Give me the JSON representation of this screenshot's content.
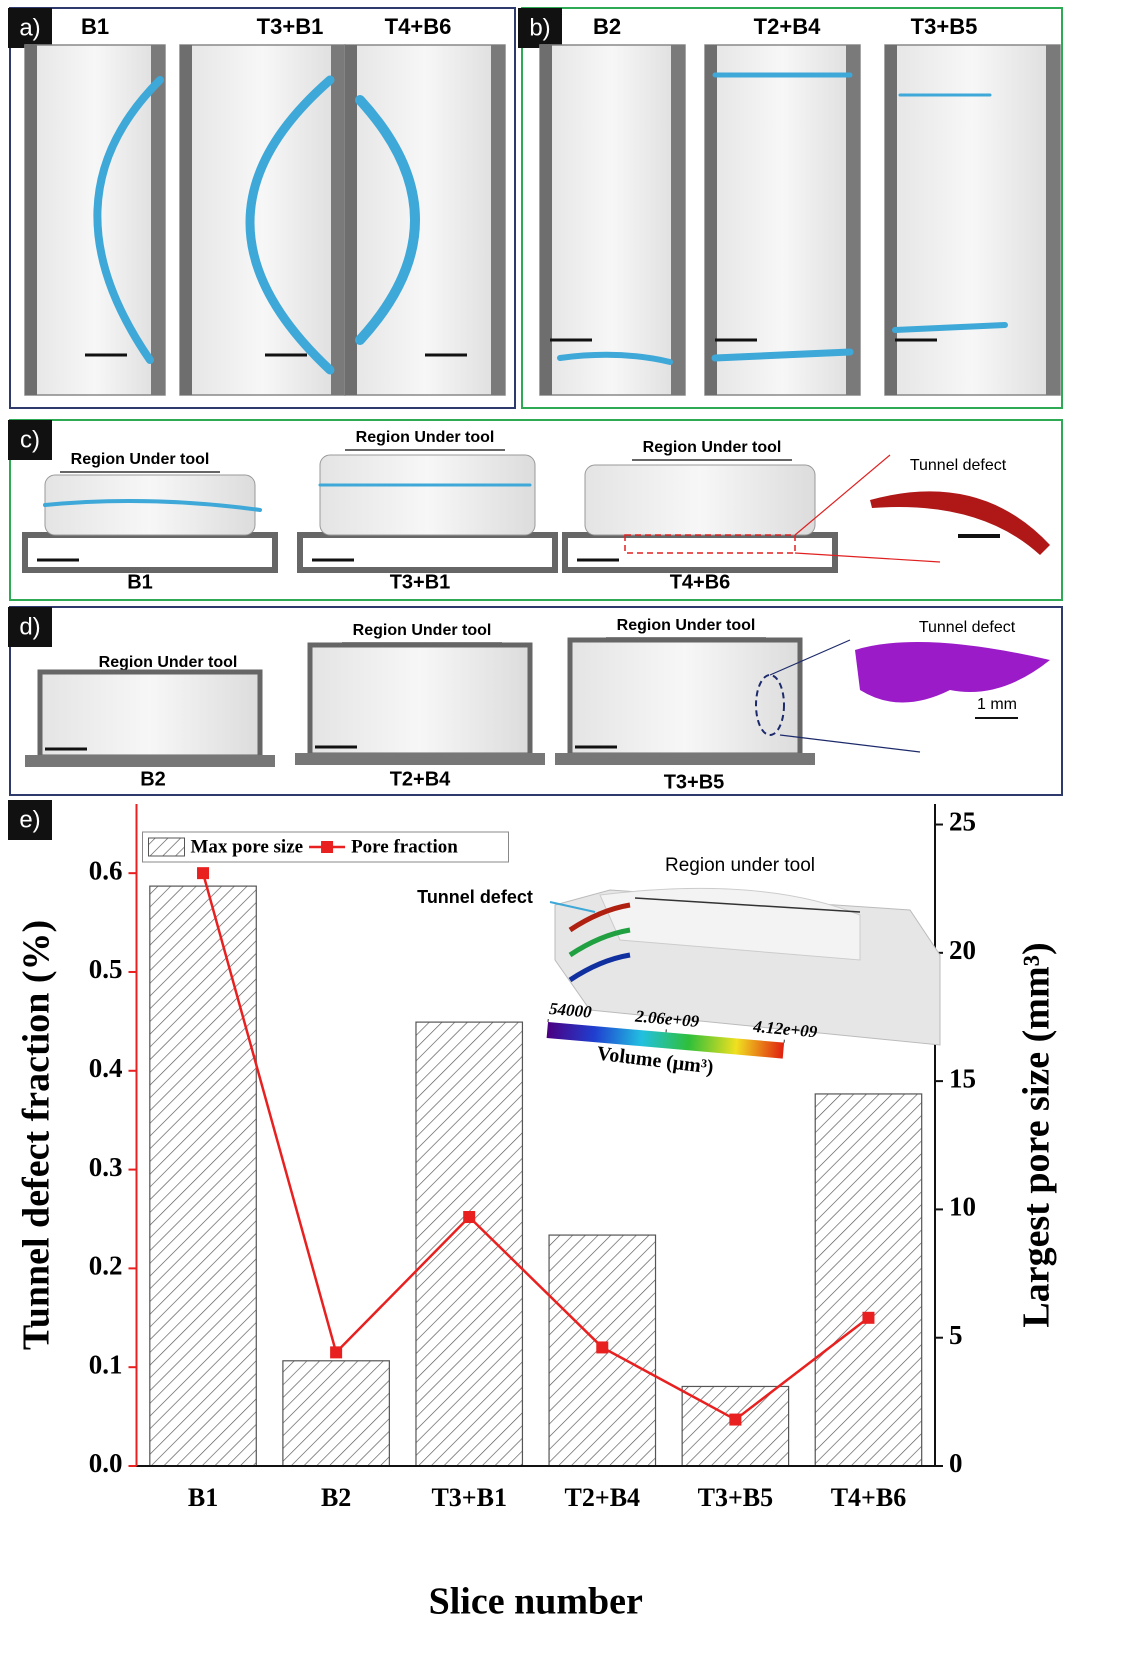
{
  "panels": [
    {
      "label": "a)",
      "views": [
        "B1",
        "T3+B1",
        "T4+B6"
      ]
    },
    {
      "label": "b)",
      "views": [
        "B2",
        "T2+B4",
        "T3+B5"
      ]
    },
    {
      "label": "c)",
      "views": [
        "B1",
        "T3+B1",
        "T4+B6"
      ],
      "region": [
        "Region Under tool",
        "Region Under tool",
        "Region Under tool"
      ],
      "defect": "Tunnel defect"
    },
    {
      "label": "d)",
      "views": [
        "B2",
        "T2+B4",
        "T3+B5"
      ],
      "region": [
        "Region Under tool",
        "Region Under tool",
        "Region Under tool"
      ],
      "defect": "Tunnel defect",
      "scale": "1 mm"
    }
  ],
  "chart_data": {
    "type": "combo",
    "panel_label": "e)",
    "categories": [
      "B1",
      "B2",
      "T3+B1",
      "T2+B4",
      "T3+B5",
      "T4+B6"
    ],
    "xlabel": "Slice number",
    "ylabel": "Tunnel defect fraction (%)",
    "y2label": "Largest pore size (mm³)",
    "series": [
      {
        "name": "Max pore size",
        "type": "bar",
        "axis": "y2",
        "color": "#555555",
        "values": [
          22.6,
          4.1,
          17.3,
          9.0,
          3.1,
          14.5
        ]
      },
      {
        "name": "Pore fraction",
        "type": "line",
        "color": "#e8201f",
        "values": [
          0.6,
          0.115,
          0.252,
          0.12,
          0.047,
          0.15
        ]
      }
    ],
    "ylim": [
      0,
      0.67
    ],
    "yticks": [
      {
        "value": 0,
        "label": "0.0"
      },
      0.1,
      0.2,
      0.3,
      0.4,
      0.5,
      0.6
    ],
    "y2lim": [
      0,
      25.8
    ],
    "y2ticks": [
      0,
      5,
      10,
      15,
      20,
      25
    ],
    "left_axis_color": "#e8201f",
    "legend": "upper left",
    "inset": {
      "region": "Region under tool",
      "defect": "Tunnel defect",
      "colorbar": {
        "label": "Volume (μm³)",
        "lim": [
          54000,
          4120000000
        ],
        "ticks": [
          54000,
          {
            "value": 2060000000,
            "label": "2.06e+09"
          },
          {
            "value": 4120000000,
            "label": "4.12e+09"
          }
        ]
      }
    }
  }
}
